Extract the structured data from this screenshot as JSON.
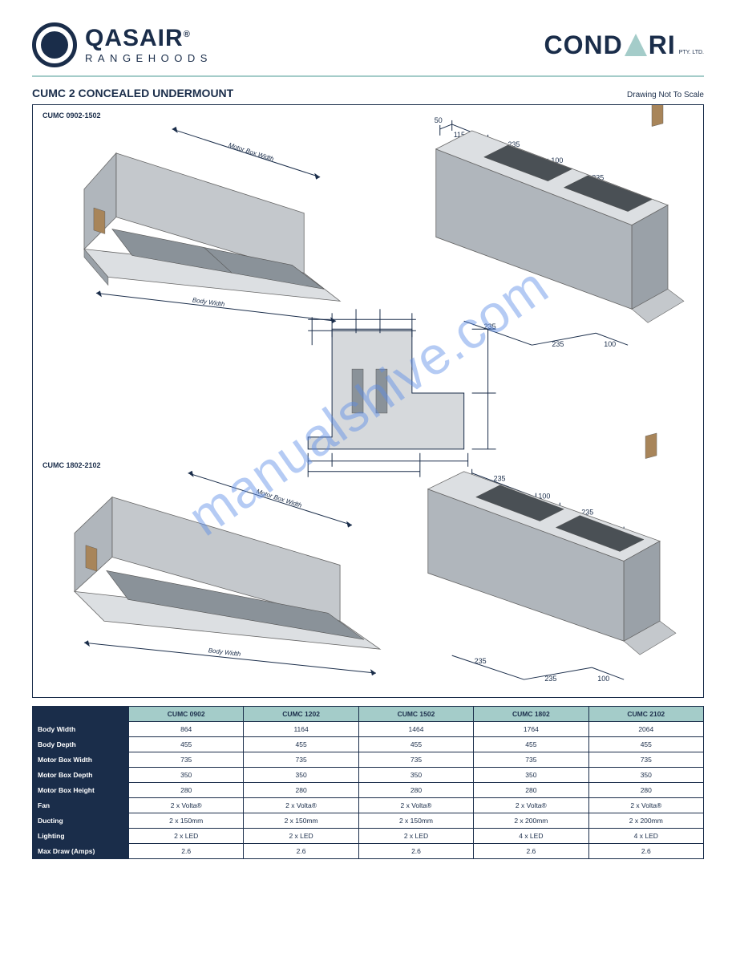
{
  "header": {
    "brand_name": "QASAIR",
    "brand_sub": "RANGEHOODS",
    "reg": "®",
    "right_brand_pre": "COND",
    "right_brand_post": "RI",
    "pty": "PTY. LTD."
  },
  "product": {
    "title": "CUMC 2 CONCEALED UNDERMOUNT",
    "scale": "Drawing Not To Scale"
  },
  "drawing": {
    "dimension_labels": {
      "motor_box_width": "Motor Box Width",
      "body_width": "Body Width"
    },
    "top_right_dims": [
      "50",
      "115",
      "235",
      "100",
      "235"
    ],
    "top_right_dims_lower": [
      "235",
      "235",
      "100"
    ],
    "bottom_right_dims_top": [
      "235",
      "100",
      "235"
    ],
    "bottom_right_dims_lower": [
      "235",
      "235",
      "100"
    ],
    "model_top": "CUMC 0902-1502",
    "model_bottom": "CUMC 1802-2102",
    "watermark": "manualshive.com"
  },
  "specs": {
    "columns": [
      "CUMC 0902",
      "CUMC 1202",
      "CUMC 1502",
      "CUMC 1802",
      "CUMC 2102"
    ],
    "rows": [
      {
        "label": "Body Width",
        "vals": [
          "864",
          "1164",
          "1464",
          "1764",
          "2064"
        ]
      },
      {
        "label": "Body Depth",
        "vals": [
          "455",
          "455",
          "455",
          "455",
          "455"
        ]
      },
      {
        "label": "Motor Box Width",
        "vals": [
          "735",
          "735",
          "735",
          "735",
          "735"
        ]
      },
      {
        "label": "Motor Box Depth",
        "vals": [
          "350",
          "350",
          "350",
          "350",
          "350"
        ]
      },
      {
        "label": "Motor Box Height",
        "vals": [
          "280",
          "280",
          "280",
          "280",
          "280"
        ]
      },
      {
        "label": "Fan",
        "vals": [
          "2 x Volta®",
          "2 x Volta®",
          "2 x Volta®",
          "2 x Volta®",
          "2 x Volta®"
        ]
      },
      {
        "label": "Ducting",
        "vals": [
          "2 x 150mm",
          "2 x 150mm",
          "2 x 150mm",
          "2 x 200mm",
          "2 x 200mm"
        ]
      },
      {
        "label": "Lighting",
        "vals": [
          "2 x LED",
          "2 x LED",
          "2 x LED",
          "4 x LED",
          "4 x LED"
        ]
      },
      {
        "label": "Max Draw (Amps)",
        "vals": [
          "2.6",
          "2.6",
          "2.6",
          "2.6",
          "2.6"
        ]
      }
    ]
  },
  "colors": {
    "navy": "#1a2d4a",
    "mint": "#a4ccc9",
    "watermark": "rgba(90,140,230,0.45)",
    "grey_body": "#c4c8cc",
    "grey_body_dark": "#8a9299",
    "filter_grey": "#9aa1a8"
  }
}
